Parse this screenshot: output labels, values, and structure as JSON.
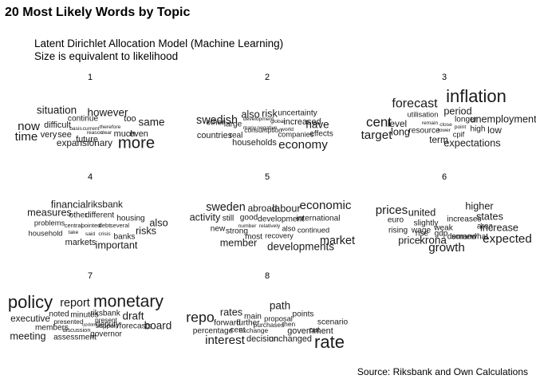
{
  "title": "20 Most Likely Words by Topic",
  "subtitle": "Latent Dirichlet Allocation Model (Machine Learning)\nSize is equivalent to likelihood",
  "caption": "Source: Riksbank and Own Calculations",
  "chart_data": {
    "type": "word-cloud-facets",
    "encoding": "font size = likelihood",
    "panels": [
      {
        "label": "1",
        "words": [
          {
            "text": "more",
            "weight": 0.9
          },
          {
            "text": "now",
            "weight": 0.6
          },
          {
            "text": "time",
            "weight": 0.6
          },
          {
            "text": "situation",
            "weight": 0.5
          },
          {
            "text": "however",
            "weight": 0.5
          },
          {
            "text": "same",
            "weight": 0.5
          },
          {
            "text": "expansionary",
            "weight": 0.4
          },
          {
            "text": "difficult",
            "weight": 0.35
          },
          {
            "text": "very",
            "weight": 0.35
          },
          {
            "text": "see",
            "weight": 0.35
          },
          {
            "text": "future",
            "weight": 0.35
          },
          {
            "text": "too",
            "weight": 0.35
          },
          {
            "text": "much",
            "weight": 0.35
          },
          {
            "text": "even",
            "weight": 0.35
          },
          {
            "text": "continue",
            "weight": 0.3
          },
          {
            "text": "basis",
            "weight": 0.1
          },
          {
            "text": "current",
            "weight": 0.1
          },
          {
            "text": "therefore",
            "weight": 0.1
          },
          {
            "text": "clear",
            "weight": 0.1
          },
          {
            "text": "reason",
            "weight": 0.1
          }
        ]
      },
      {
        "label": "2",
        "words": [
          {
            "text": "economy",
            "weight": 0.6
          },
          {
            "text": "swedish",
            "weight": 0.55
          },
          {
            "text": "have",
            "weight": 0.5
          },
          {
            "text": "also",
            "weight": 0.45
          },
          {
            "text": "risk",
            "weight": 0.45
          },
          {
            "text": "countries",
            "weight": 0.35
          },
          {
            "text": "households",
            "weight": 0.35
          },
          {
            "text": "increased",
            "weight": 0.35
          },
          {
            "text": "uncertainty",
            "weight": 0.3
          },
          {
            "text": "effects",
            "weight": 0.3
          },
          {
            "text": "real",
            "weight": 0.3
          },
          {
            "text": "large",
            "weight": 0.3
          },
          {
            "text": "other",
            "weight": 0.3
          },
          {
            "text": "companies",
            "weight": 0.25
          },
          {
            "text": "consumption",
            "weight": 0.2
          },
          {
            "text": "development",
            "weight": 0.1
          },
          {
            "text": "global",
            "weight": 0.1
          },
          {
            "text": "many",
            "weight": 0.1
          },
          {
            "text": "negative",
            "weight": 0.1
          },
          {
            "text": "world",
            "weight": 0.1
          }
        ]
      },
      {
        "label": "3",
        "words": [
          {
            "text": "inflation",
            "weight": 1.0
          },
          {
            "text": "forecast",
            "weight": 0.65
          },
          {
            "text": "cent",
            "weight": 0.7
          },
          {
            "text": "target",
            "weight": 0.6
          },
          {
            "text": "period",
            "weight": 0.45
          },
          {
            "text": "expectations",
            "weight": 0.45
          },
          {
            "text": "unemployment",
            "weight": 0.45
          },
          {
            "text": "long",
            "weight": 0.45
          },
          {
            "text": "level",
            "weight": 0.4
          },
          {
            "text": "term",
            "weight": 0.4
          },
          {
            "text": "low",
            "weight": 0.4
          },
          {
            "text": "longer",
            "weight": 0.3
          },
          {
            "text": "high",
            "weight": 0.3
          },
          {
            "text": "resource",
            "weight": 0.3
          },
          {
            "text": "utilisation",
            "weight": 0.25
          },
          {
            "text": "cpif",
            "weight": 0.25
          },
          {
            "text": "remain",
            "weight": 0.1
          },
          {
            "text": "close",
            "weight": 0.1
          },
          {
            "text": "point",
            "weight": 0.1
          },
          {
            "text": "lower",
            "weight": 0.1
          }
        ]
      },
      {
        "label": "4",
        "words": [
          {
            "text": "financial",
            "weight": 0.45
          },
          {
            "text": "riksbank",
            "weight": 0.4
          },
          {
            "text": "measures",
            "weight": 0.45
          },
          {
            "text": "important",
            "weight": 0.45
          },
          {
            "text": "also",
            "weight": 0.45
          },
          {
            "text": "risks",
            "weight": 0.45
          },
          {
            "text": "markets",
            "weight": 0.35
          },
          {
            "text": "housing",
            "weight": 0.3
          },
          {
            "text": "banks",
            "weight": 0.3
          },
          {
            "text": "problems",
            "weight": 0.25
          },
          {
            "text": "household",
            "weight": 0.25
          },
          {
            "text": "other",
            "weight": 0.3
          },
          {
            "text": "different",
            "weight": 0.3
          },
          {
            "text": "central",
            "weight": 0.15
          },
          {
            "text": "pointed",
            "weight": 0.15
          },
          {
            "text": "debt",
            "weight": 0.15
          },
          {
            "text": "several",
            "weight": 0.15
          },
          {
            "text": "take",
            "weight": 0.1
          },
          {
            "text": "said",
            "weight": 0.1
          },
          {
            "text": "crisis",
            "weight": 0.1
          }
        ]
      },
      {
        "label": "5",
        "words": [
          {
            "text": "economic",
            "weight": 0.6
          },
          {
            "text": "sweden",
            "weight": 0.55
          },
          {
            "text": "market",
            "weight": 0.55
          },
          {
            "text": "developments",
            "weight": 0.5
          },
          {
            "text": "activity",
            "weight": 0.45
          },
          {
            "text": "labour",
            "weight": 0.45
          },
          {
            "text": "abroad",
            "weight": 0.4
          },
          {
            "text": "member",
            "weight": 0.45
          },
          {
            "text": "international",
            "weight": 0.3
          },
          {
            "text": "development",
            "weight": 0.3
          },
          {
            "text": "still",
            "weight": 0.3
          },
          {
            "text": "good",
            "weight": 0.3
          },
          {
            "text": "new",
            "weight": 0.3
          },
          {
            "text": "strong",
            "weight": 0.3
          },
          {
            "text": "most",
            "weight": 0.3
          },
          {
            "text": "recovery",
            "weight": 0.25
          },
          {
            "text": "continued",
            "weight": 0.25
          },
          {
            "text": "also",
            "weight": 0.25
          },
          {
            "text": "number",
            "weight": 0.1
          },
          {
            "text": "relatively",
            "weight": 0.1
          }
        ]
      },
      {
        "label": "6",
        "words": [
          {
            "text": "prices",
            "weight": 0.6
          },
          {
            "text": "growth",
            "weight": 0.6
          },
          {
            "text": "expected",
            "weight": 0.6
          },
          {
            "text": "krona",
            "weight": 0.5
          },
          {
            "text": "united",
            "weight": 0.45
          },
          {
            "text": "higher",
            "weight": 0.45
          },
          {
            "text": "states",
            "weight": 0.45
          },
          {
            "text": "price",
            "weight": 0.45
          },
          {
            "text": "increase",
            "weight": 0.45
          },
          {
            "text": "area",
            "weight": 0.3
          },
          {
            "text": "euro",
            "weight": 0.3
          },
          {
            "text": "increases",
            "weight": 0.3
          },
          {
            "text": "rising",
            "weight": 0.3
          },
          {
            "text": "slightly",
            "weight": 0.3
          },
          {
            "text": "rise",
            "weight": 0.3
          },
          {
            "text": "weak",
            "weight": 0.3
          },
          {
            "text": "demand",
            "weight": 0.3
          },
          {
            "text": "wage",
            "weight": 0.3
          },
          {
            "text": "gdp",
            "weight": 0.3
          },
          {
            "text": "somewhat",
            "weight": 0.3
          }
        ]
      },
      {
        "label": "7",
        "words": [
          {
            "text": "policy",
            "weight": 1.0
          },
          {
            "text": "monetary",
            "weight": 0.95
          },
          {
            "text": "report",
            "weight": 0.55
          },
          {
            "text": "board",
            "weight": 0.5
          },
          {
            "text": "draft",
            "weight": 0.5
          },
          {
            "text": "meeting",
            "weight": 0.45
          },
          {
            "text": "executive",
            "weight": 0.4
          },
          {
            "text": "noted",
            "weight": 0.3
          },
          {
            "text": "minutes",
            "weight": 0.3
          },
          {
            "text": "riksbank",
            "weight": 0.3
          },
          {
            "text": "members",
            "weight": 0.3
          },
          {
            "text": "deputy",
            "weight": 0.3
          },
          {
            "text": "forecasts",
            "weight": 0.3
          },
          {
            "text": "governor",
            "weight": 0.3
          },
          {
            "text": "assessment",
            "weight": 0.3
          },
          {
            "text": "present",
            "weight": 0.2
          },
          {
            "text": "support",
            "weight": 0.2
          },
          {
            "text": "presented",
            "weight": 0.2
          },
          {
            "text": "discussion",
            "weight": 0.15
          },
          {
            "text": "update",
            "weight": 0.05
          }
        ]
      },
      {
        "label": "8",
        "words": [
          {
            "text": "rate",
            "weight": 1.0
          },
          {
            "text": "repo",
            "weight": 0.75
          },
          {
            "text": "interest",
            "weight": 0.6
          },
          {
            "text": "path",
            "weight": 0.5
          },
          {
            "text": "rates",
            "weight": 0.45
          },
          {
            "text": "decision",
            "weight": 0.35
          },
          {
            "text": "unchanged",
            "weight": 0.35
          },
          {
            "text": "government",
            "weight": 0.35
          },
          {
            "text": "cut",
            "weight": 0.3
          },
          {
            "text": "points",
            "weight": 0.3
          },
          {
            "text": "scenario",
            "weight": 0.3
          },
          {
            "text": "percentage",
            "weight": 0.3
          },
          {
            "text": "cent",
            "weight": 0.3
          },
          {
            "text": "main",
            "weight": 0.3
          },
          {
            "text": "forward",
            "weight": 0.3
          },
          {
            "text": "further",
            "weight": 0.3
          },
          {
            "text": "proposal",
            "weight": 0.25
          },
          {
            "text": "then",
            "weight": 0.2
          },
          {
            "text": "purchases",
            "weight": 0.2
          },
          {
            "text": "exchange",
            "weight": 0.2
          }
        ]
      }
    ]
  }
}
